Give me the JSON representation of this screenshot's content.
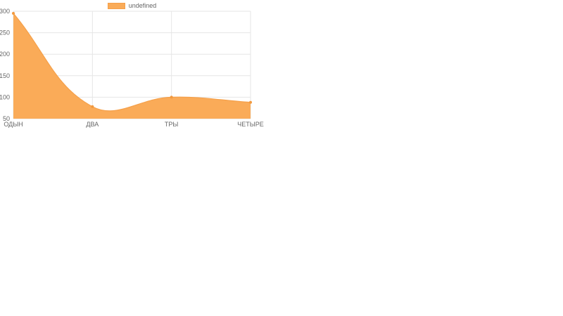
{
  "page": {
    "background": "#ffffff"
  },
  "chart": {
    "legend": {
      "label": "undefined"
    },
    "colors": {
      "fill": "#FAAB58",
      "stroke": "#F5A04A",
      "point": "#F2993E",
      "grid": "#E6E6E6",
      "tick_text": "#666666"
    }
  },
  "chart_data": {
    "type": "area",
    "categories": [
      "ОДЫН",
      "ДВА",
      "ТРЫ",
      "ЧЕТЫРЕ"
    ],
    "series": [
      {
        "name": "undefined",
        "values": [
          295,
          78,
          100,
          88
        ]
      }
    ],
    "title": "",
    "xlabel": "",
    "ylabel": "",
    "ylim": [
      50,
      300
    ],
    "yticks": [
      300,
      250,
      200,
      150,
      100,
      50
    ],
    "grid": true,
    "legend_position": "top-center",
    "curve": "bezier-tension-0.4"
  }
}
